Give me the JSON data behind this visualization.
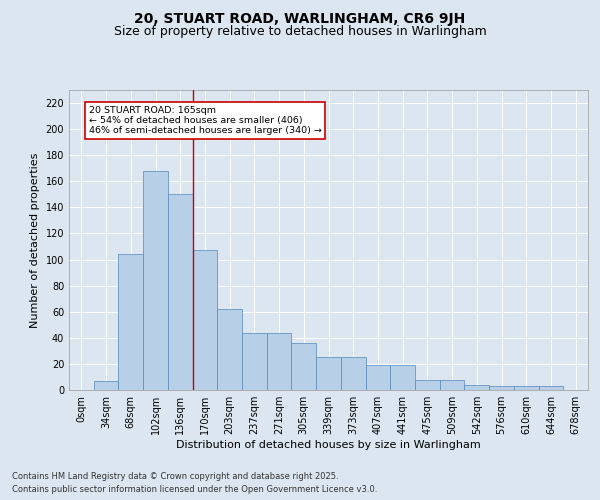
{
  "title": "20, STUART ROAD, WARLINGHAM, CR6 9JH",
  "subtitle": "Size of property relative to detached houses in Warlingham",
  "xlabel": "Distribution of detached houses by size in Warlingham",
  "ylabel": "Number of detached properties",
  "bar_labels": [
    "0sqm",
    "34sqm",
    "68sqm",
    "102sqm",
    "136sqm",
    "170sqm",
    "203sqm",
    "237sqm",
    "271sqm",
    "305sqm",
    "339sqm",
    "373sqm",
    "407sqm",
    "441sqm",
    "475sqm",
    "509sqm",
    "542sqm",
    "576sqm",
    "610sqm",
    "644sqm",
    "678sqm"
  ],
  "bar_values": [
    0,
    7,
    104,
    168,
    150,
    107,
    62,
    44,
    44,
    36,
    25,
    25,
    19,
    19,
    8,
    8,
    4,
    3,
    3,
    3,
    0
  ],
  "bar_color": "#b8cfe8",
  "bar_edge_color": "#5588bb",
  "highlight_line_color": "#cc0000",
  "annotation_text": "20 STUART ROAD: 165sqm\n← 54% of detached houses are smaller (406)\n46% of semi-detached houses are larger (340) →",
  "annotation_box_color": "#cc0000",
  "background_color": "#dce6f0",
  "plot_bg_color": "#dce6f0",
  "footer_line1": "Contains HM Land Registry data © Crown copyright and database right 2025.",
  "footer_line2": "Contains public sector information licensed under the Open Government Licence v3.0.",
  "ylim": [
    0,
    230
  ],
  "yticks": [
    0,
    20,
    40,
    60,
    80,
    100,
    120,
    140,
    160,
    180,
    200,
    220
  ],
  "title_fontsize": 10,
  "subtitle_fontsize": 9,
  "axis_label_fontsize": 8,
  "tick_fontsize": 7,
  "footer_fontsize": 6
}
